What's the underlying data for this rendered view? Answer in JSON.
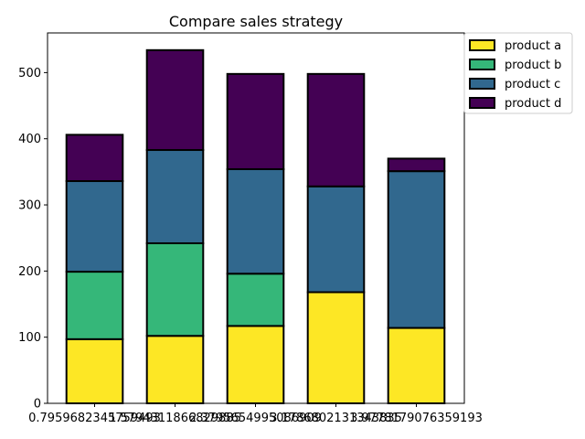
{
  "chart_data": {
    "type": "bar",
    "stacked": true,
    "title": "Compare sales strategy",
    "xlabel": "",
    "ylabel": "",
    "categories": [
      "0.7959682345759493",
      "1.5794311866829885",
      "2.3795654995086909",
      "3.1786802131343835",
      "3.9778179076359193"
    ],
    "tick_labels": [
      "0.7959682345759493",
      "1.5794311866829885",
      "2.3795654995086909",
      "3.1786802131343835",
      "3.9778179076359193"
    ],
    "series": [
      {
        "name": "product a",
        "color": "#fde725",
        "values": [
          97,
          102,
          117,
          168,
          114
        ]
      },
      {
        "name": "product b",
        "color": "#35b779",
        "values": [
          102,
          140,
          79,
          0,
          0
        ]
      },
      {
        "name": "product c",
        "color": "#31688e",
        "values": [
          137,
          141,
          158,
          160,
          237
        ]
      },
      {
        "name": "product d",
        "color": "#440154",
        "values": [
          70,
          151,
          144,
          170,
          19
        ]
      }
    ],
    "ylim": [
      0,
      560
    ],
    "yticks": [
      0,
      100,
      200,
      300,
      400,
      500
    ],
    "grid": false,
    "legend_position": "outside-top-right"
  }
}
